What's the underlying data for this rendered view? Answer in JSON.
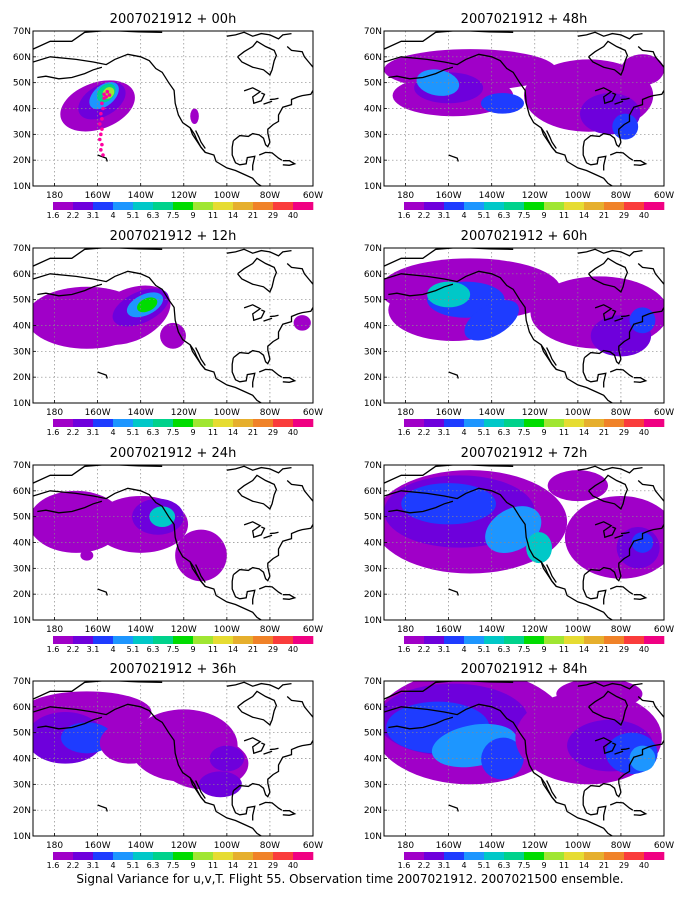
{
  "caption": "Signal Variance for u,v,T. Flight 55. Observation time 2007021912. 2007021500 ensemble.",
  "panels": [
    {
      "title": "2007021912 + 00h"
    },
    {
      "title": "2007021912 + 48h"
    },
    {
      "title": "2007021912 + 12h"
    },
    {
      "title": "2007021912 + 60h"
    },
    {
      "title": "2007021912 + 24h"
    },
    {
      "title": "2007021912 + 72h"
    },
    {
      "title": "2007021912 + 36h"
    },
    {
      "title": "2007021912 + 84h"
    }
  ],
  "axes": {
    "lon_ticks": [
      {
        "value": 180,
        "label": "180"
      },
      {
        "value": 160,
        "label": "160W"
      },
      {
        "value": 140,
        "label": "140W"
      },
      {
        "value": 120,
        "label": "120W"
      },
      {
        "value": 100,
        "label": "100W"
      },
      {
        "value": 80,
        "label": "80W"
      },
      {
        "value": 60,
        "label": "60W"
      }
    ],
    "lat_ticks": [
      {
        "value": 70,
        "label": "70N"
      },
      {
        "value": 60,
        "label": "60N"
      },
      {
        "value": 50,
        "label": "50N"
      },
      {
        "value": 40,
        "label": "40N"
      },
      {
        "value": 30,
        "label": "30N"
      },
      {
        "value": 20,
        "label": "20N"
      },
      {
        "value": 10,
        "label": "10N"
      }
    ],
    "lon_range": [
      190,
      60
    ],
    "lat_range": [
      10,
      70
    ],
    "grid": "dotted"
  },
  "colorbar": {
    "labels": [
      "1.6",
      "2.2",
      "3.1",
      "4",
      "5.1",
      "6.3",
      "7.5",
      "9",
      "11",
      "14",
      "21",
      "29",
      "40"
    ],
    "colors": [
      "#ffffff",
      "#a000c8",
      "#6e00dc",
      "#1e3cff",
      "#1d96ff",
      "#00c8c8",
      "#00d28c",
      "#00dc00",
      "#a0e632",
      "#e6dc32",
      "#e6af2d",
      "#f08228",
      "#fa3c3c",
      "#f00082"
    ]
  },
  "colors": {
    "land_outline": "#000000",
    "track_marker": "#ff00a0",
    "grid": "#8a8a8a"
  }
}
